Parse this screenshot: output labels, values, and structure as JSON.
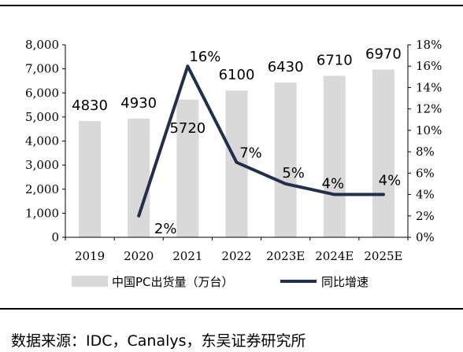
{
  "chart_data": {
    "type": "bar",
    "categories": [
      "2019",
      "2020",
      "2021",
      "2022",
      "2023E",
      "2024E",
      "2025E"
    ],
    "series": [
      {
        "name": "中国PC出货量（万台）",
        "type": "bar",
        "axis": "left",
        "values": [
          4830,
          4930,
          5720,
          6100,
          6430,
          6710,
          6970
        ],
        "data_labels": [
          "4830",
          "4930",
          "5720",
          "6100",
          "6430",
          "6710",
          "6970"
        ]
      },
      {
        "name": "同比增速",
        "type": "line",
        "axis": "right",
        "values": [
          null,
          2,
          16,
          7,
          5,
          4,
          4
        ],
        "data_labels": [
          null,
          "2%",
          "16%",
          "7%",
          "5%",
          "4%",
          "4%"
        ]
      }
    ],
    "y_left": {
      "ylim": [
        0,
        8000
      ],
      "ticks": [
        0,
        1000,
        2000,
        3000,
        4000,
        5000,
        6000,
        7000,
        8000
      ],
      "tick_labels": [
        "0",
        "1,000",
        "2,000",
        "3,000",
        "4,000",
        "5,000",
        "6,000",
        "7,000",
        "8,000"
      ]
    },
    "y_right": {
      "ylim": [
        0,
        18
      ],
      "ticks": [
        0,
        2,
        4,
        6,
        8,
        10,
        12,
        14,
        16,
        18
      ],
      "tick_labels": [
        "0%",
        "2%",
        "4%",
        "6%",
        "8%",
        "10%",
        "12%",
        "14%",
        "16%",
        "18%"
      ]
    },
    "legend_position": "bottom",
    "grid": false,
    "colors": {
      "bar": "#d9d9d9",
      "line": "#1f2f4d",
      "axis": "#000000",
      "text": "#000000"
    }
  },
  "source_note": "数据来源：IDC，Canalys，东吴证券研究所"
}
